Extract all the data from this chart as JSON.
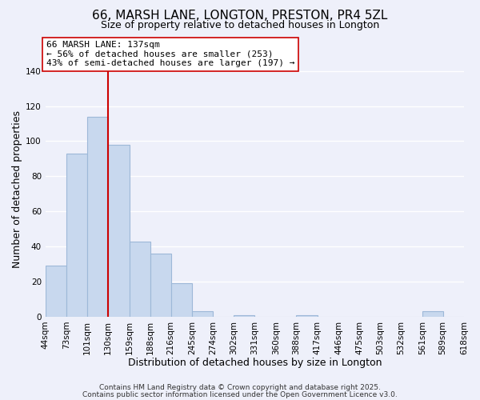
{
  "title": "66, MARSH LANE, LONGTON, PRESTON, PR4 5ZL",
  "subtitle": "Size of property relative to detached houses in Longton",
  "bin_labels": [
    "44sqm",
    "73sqm",
    "101sqm",
    "130sqm",
    "159sqm",
    "188sqm",
    "216sqm",
    "245sqm",
    "274sqm",
    "302sqm",
    "331sqm",
    "360sqm",
    "388sqm",
    "417sqm",
    "446sqm",
    "475sqm",
    "503sqm",
    "532sqm",
    "561sqm",
    "589sqm",
    "618sqm"
  ],
  "bin_values": [
    29,
    93,
    114,
    98,
    43,
    36,
    19,
    3,
    0,
    1,
    0,
    0,
    1,
    0,
    0,
    0,
    0,
    0,
    3,
    0
  ],
  "bar_color": "#c8d8ee",
  "bar_edge_color": "#9db8d8",
  "vline_color": "#cc0000",
  "vline_bin_index": 3,
  "xlabel": "Distribution of detached houses by size in Longton",
  "ylabel": "Number of detached properties",
  "ylim": [
    0,
    145
  ],
  "yticks": [
    0,
    20,
    40,
    60,
    80,
    100,
    120,
    140
  ],
  "annotation_title": "66 MARSH LANE: 137sqm",
  "annotation_line1": "← 56% of detached houses are smaller (253)",
  "annotation_line2": "43% of semi-detached houses are larger (197) →",
  "footer1": "Contains HM Land Registry data © Crown copyright and database right 2025.",
  "footer2": "Contains public sector information licensed under the Open Government Licence v3.0.",
  "background_color": "#eef0fa",
  "grid_color": "#ffffff",
  "title_fontsize": 11,
  "subtitle_fontsize": 9,
  "axis_label_fontsize": 9,
  "tick_fontsize": 7.5,
  "annotation_fontsize": 8,
  "footer_fontsize": 6.5
}
